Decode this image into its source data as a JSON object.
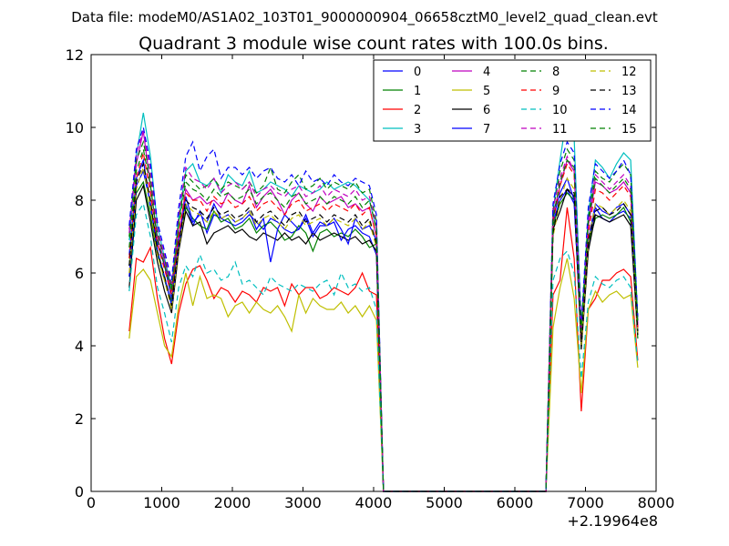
{
  "chart_data": {
    "type": "line",
    "suptitle": "Data file: modeM0/AS1A02_103T01_9000000904_06658cztM0_level2_quad_clean.evt",
    "title": "Quadrant 3 module wise count rates with 100.0s bins.",
    "xlabel": "",
    "ylabel": "",
    "x_offset_label": "+2.19964e8",
    "xlim": [
      0,
      8000
    ],
    "ylim": [
      0,
      12
    ],
    "xticks": [
      0,
      1000,
      2000,
      3000,
      4000,
      5000,
      6000,
      7000,
      8000
    ],
    "yticks": [
      0,
      2,
      4,
      6,
      8,
      10,
      12
    ],
    "grid": false,
    "legend_position": "top-right",
    "legend_columns": 4,
    "x": [
      540,
      640,
      740,
      840,
      940,
      1040,
      1140,
      1240,
      1340,
      1440,
      1540,
      1640,
      1740,
      1840,
      1940,
      2040,
      2140,
      2240,
      2340,
      2440,
      2540,
      2640,
      2740,
      2840,
      2940,
      3040,
      3140,
      3240,
      3340,
      3440,
      3540,
      3640,
      3740,
      3840,
      3940,
      4040,
      4140,
      4240,
      6340,
      6440,
      6540,
      6640,
      6740,
      6840,
      6940,
      7040,
      7140,
      7240,
      7340,
      7440,
      7540,
      7640,
      7740
    ],
    "series": [
      {
        "name": "0",
        "color": "#0000ff",
        "dash": "solid",
        "values": [
          6.5,
          8.6,
          9.1,
          7.8,
          6.8,
          6.2,
          5.3,
          6.8,
          7.9,
          7.3,
          7.7,
          7.1,
          7.6,
          7.5,
          7.4,
          7.3,
          7.4,
          7.6,
          7.4,
          7.2,
          7.5,
          7.4,
          7.2,
          7.1,
          7.2,
          7.5,
          7.0,
          7.3,
          7.3,
          7.4,
          6.9,
          7.2,
          7.3,
          7.1,
          7.0,
          6.5,
          0.0,
          0.0,
          0.0,
          0.0,
          7.4,
          8.0,
          8.3,
          7.9,
          4.3,
          6.7,
          7.8,
          7.5,
          7.4,
          7.6,
          7.7,
          7.5,
          4.4
        ]
      },
      {
        "name": "1",
        "color": "#008000",
        "dash": "solid",
        "values": [
          6.2,
          8.2,
          8.5,
          7.6,
          6.5,
          5.8,
          5.2,
          6.9,
          7.8,
          7.5,
          7.3,
          7.2,
          7.7,
          7.4,
          7.5,
          7.2,
          7.3,
          7.5,
          7.1,
          7.3,
          7.4,
          7.2,
          6.9,
          7.0,
          7.3,
          7.1,
          6.6,
          7.1,
          7.2,
          7.0,
          7.1,
          7.0,
          7.2,
          7.0,
          6.7,
          6.8,
          0.0,
          0.0,
          0.0,
          0.0,
          7.3,
          7.9,
          8.2,
          8.0,
          4.0,
          6.8,
          7.5,
          7.6,
          7.5,
          7.6,
          7.8,
          7.4,
          4.2
        ]
      },
      {
        "name": "2",
        "color": "#ff0000",
        "dash": "solid",
        "values": [
          4.4,
          6.4,
          6.3,
          6.7,
          5.3,
          4.2,
          3.5,
          4.9,
          5.7,
          6.1,
          6.2,
          5.8,
          5.3,
          5.6,
          5.5,
          5.2,
          5.5,
          5.4,
          5.2,
          5.6,
          5.5,
          5.6,
          5.1,
          5.7,
          5.4,
          5.6,
          5.6,
          5.3,
          5.4,
          5.6,
          5.5,
          5.4,
          5.6,
          6.0,
          5.5,
          5.4,
          0.0,
          0.0,
          0.0,
          0.0,
          5.4,
          5.8,
          7.8,
          6.4,
          2.2,
          5.0,
          5.3,
          5.8,
          5.8,
          6.0,
          6.1,
          5.9,
          3.6
        ]
      },
      {
        "name": "3",
        "color": "#00bfbf",
        "dash": "solid",
        "values": [
          6.9,
          9.2,
          10.4,
          9.2,
          7.3,
          6.4,
          5.6,
          7.5,
          8.8,
          9.0,
          8.5,
          8.4,
          8.6,
          8.2,
          8.7,
          8.5,
          8.4,
          8.8,
          8.2,
          8.3,
          8.5,
          8.4,
          8.3,
          8.1,
          8.4,
          8.3,
          8.2,
          8.3,
          8.5,
          8.3,
          8.4,
          8.5,
          8.4,
          8.2,
          8.0,
          7.2,
          0.0,
          0.0,
          0.0,
          0.0,
          7.7,
          9.1,
          10.4,
          9.7,
          4.5,
          7.6,
          9.1,
          8.9,
          8.6,
          9.0,
          9.3,
          9.1,
          4.7
        ]
      },
      {
        "name": "4",
        "color": "#bf00bf",
        "dash": "solid",
        "values": [
          7.2,
          9.0,
          9.9,
          8.4,
          7.0,
          6.3,
          5.5,
          7.0,
          8.3,
          8.0,
          8.1,
          7.9,
          8.0,
          7.8,
          8.2,
          8.0,
          7.9,
          8.4,
          7.8,
          8.1,
          8.3,
          8.0,
          7.6,
          8.0,
          8.2,
          7.9,
          7.7,
          8.1,
          7.9,
          8.0,
          8.1,
          7.8,
          7.9,
          7.7,
          7.8,
          7.0,
          0.0,
          0.0,
          0.0,
          0.0,
          7.6,
          8.4,
          9.1,
          8.8,
          4.3,
          7.3,
          8.5,
          8.4,
          8.2,
          8.3,
          8.5,
          8.2,
          4.6
        ]
      },
      {
        "name": "5",
        "color": "#bfbf00",
        "dash": "solid",
        "values": [
          4.2,
          5.9,
          6.1,
          5.8,
          4.9,
          4.0,
          3.7,
          5.1,
          6.0,
          5.1,
          5.9,
          5.3,
          5.4,
          5.3,
          4.8,
          5.1,
          5.2,
          4.9,
          5.2,
          5.0,
          4.9,
          5.1,
          4.8,
          4.4,
          5.4,
          4.9,
          5.3,
          5.1,
          5.0,
          5.0,
          5.2,
          4.9,
          5.1,
          4.8,
          5.1,
          4.7,
          0.0,
          0.0,
          0.0,
          0.0,
          4.5,
          5.6,
          6.4,
          5.3,
          2.7,
          5.0,
          5.5,
          5.2,
          5.4,
          5.5,
          5.3,
          5.4,
          3.4
        ]
      },
      {
        "name": "6",
        "color": "#000000",
        "dash": "solid",
        "values": [
          5.6,
          8.0,
          8.4,
          7.4,
          6.3,
          5.5,
          4.9,
          6.6,
          7.7,
          7.3,
          7.4,
          6.8,
          7.1,
          7.2,
          7.3,
          7.1,
          7.2,
          7.0,
          6.9,
          7.1,
          7.0,
          6.9,
          7.1,
          6.9,
          7.0,
          6.8,
          7.1,
          6.9,
          7.0,
          7.1,
          7.0,
          6.9,
          7.0,
          6.8,
          6.9,
          6.6,
          0.0,
          0.0,
          0.0,
          0.0,
          7.2,
          7.7,
          8.3,
          8.1,
          3.9,
          6.6,
          7.6,
          7.5,
          7.4,
          7.5,
          7.6,
          7.3,
          4.3
        ]
      },
      {
        "name": "7",
        "color": "#0000ff",
        "dash": "solid",
        "values": [
          5.9,
          8.4,
          8.8,
          7.9,
          6.6,
          5.9,
          5.1,
          6.8,
          8.1,
          7.4,
          7.6,
          7.4,
          7.9,
          7.5,
          7.6,
          7.4,
          7.5,
          7.7,
          7.2,
          7.5,
          6.3,
          7.2,
          7.6,
          7.4,
          7.2,
          7.6,
          7.1,
          7.4,
          7.3,
          7.5,
          7.2,
          6.8,
          7.5,
          7.2,
          7.3,
          6.9,
          0.0,
          0.0,
          0.0,
          0.0,
          7.5,
          8.2,
          8.6,
          8.0,
          4.2,
          6.9,
          7.9,
          7.7,
          7.6,
          7.8,
          7.9,
          7.6,
          4.5
        ]
      },
      {
        "name": "8",
        "color": "#008000",
        "dash": "dashed",
        "values": [
          7.0,
          9.1,
          9.6,
          8.6,
          7.1,
          6.4,
          5.6,
          7.4,
          8.7,
          8.5,
          8.3,
          8.4,
          8.6,
          8.3,
          8.5,
          8.4,
          8.3,
          8.5,
          8.2,
          8.4,
          8.9,
          8.3,
          8.2,
          8.5,
          8.7,
          8.3,
          8.4,
          8.6,
          8.3,
          8.5,
          8.4,
          8.3,
          8.5,
          8.2,
          8.3,
          7.4,
          0.0,
          0.0,
          0.0,
          0.0,
          7.7,
          8.8,
          9.4,
          9.1,
          4.5,
          7.5,
          8.8,
          8.6,
          8.5,
          8.8,
          9.0,
          8.7,
          4.7
        ]
      },
      {
        "name": "9",
        "color": "#ff0000",
        "dash": "dashed",
        "values": [
          6.4,
          8.6,
          9.3,
          8.2,
          6.8,
          6.1,
          5.4,
          7.1,
          8.2,
          8.0,
          8.0,
          7.7,
          8.1,
          7.9,
          8.0,
          7.8,
          7.9,
          8.1,
          7.7,
          7.9,
          8.0,
          7.8,
          7.6,
          7.9,
          8.0,
          7.7,
          7.8,
          7.9,
          7.7,
          7.9,
          7.8,
          7.7,
          7.9,
          7.6,
          7.8,
          7.0,
          0.0,
          0.0,
          0.0,
          0.0,
          7.4,
          8.4,
          9.0,
          8.7,
          4.2,
          7.1,
          8.3,
          8.2,
          8.0,
          8.2,
          8.4,
          8.1,
          4.5
        ]
      },
      {
        "name": "10",
        "color": "#00bfbf",
        "dash": "dashed",
        "values": [
          5.5,
          7.6,
          7.9,
          7.0,
          5.6,
          4.9,
          4.1,
          5.6,
          6.2,
          5.9,
          6.5,
          6.0,
          6.1,
          5.8,
          5.9,
          6.3,
          5.7,
          5.8,
          5.6,
          5.4,
          5.9,
          5.7,
          5.6,
          5.5,
          5.7,
          5.6,
          5.5,
          5.7,
          5.8,
          5.4,
          6.0,
          5.6,
          5.7,
          5.5,
          5.6,
          5.0,
          0.0,
          0.0,
          0.0,
          0.0,
          5.8,
          6.4,
          6.6,
          6.0,
          3.1,
          5.2,
          5.9,
          5.7,
          5.6,
          5.8,
          5.9,
          5.6,
          3.5
        ]
      },
      {
        "name": "11",
        "color": "#bf00bf",
        "dash": "dashed",
        "values": [
          7.1,
          9.3,
          9.9,
          8.8,
          7.2,
          6.5,
          5.7,
          7.6,
          8.9,
          8.6,
          8.5,
          8.3,
          8.6,
          8.2,
          8.4,
          8.5,
          8.3,
          8.5,
          8.1,
          8.3,
          8.4,
          8.2,
          8.1,
          8.3,
          8.4,
          8.1,
          8.2,
          8.4,
          8.1,
          8.3,
          8.2,
          8.1,
          8.3,
          8.0,
          8.1,
          7.3,
          0.0,
          0.0,
          0.0,
          0.0,
          7.8,
          8.6,
          9.2,
          8.8,
          4.4,
          7.5,
          8.7,
          8.5,
          8.3,
          8.5,
          8.7,
          8.4,
          4.6
        ]
      },
      {
        "name": "12",
        "color": "#bfbf00",
        "dash": "dashed",
        "values": [
          6.0,
          8.3,
          8.9,
          7.8,
          6.5,
          5.8,
          5.0,
          6.7,
          7.9,
          7.7,
          7.6,
          7.4,
          7.7,
          7.5,
          7.6,
          7.4,
          7.5,
          7.7,
          7.3,
          7.5,
          7.6,
          7.4,
          7.2,
          7.5,
          7.6,
          7.3,
          7.4,
          7.5,
          7.3,
          7.5,
          7.4,
          7.3,
          7.5,
          7.2,
          7.4,
          6.7,
          0.0,
          0.0,
          0.0,
          0.0,
          7.0,
          8.0,
          8.6,
          8.3,
          4.0,
          6.8,
          7.9,
          7.8,
          7.6,
          7.8,
          8.0,
          7.7,
          4.3
        ]
      },
      {
        "name": "13",
        "color": "#000000",
        "dash": "dashed",
        "values": [
          6.2,
          8.5,
          9.0,
          8.0,
          6.6,
          5.9,
          5.1,
          6.8,
          8.0,
          7.8,
          7.7,
          7.5,
          7.8,
          7.6,
          7.7,
          7.5,
          7.6,
          7.8,
          7.4,
          7.6,
          7.7,
          7.5,
          7.3,
          7.6,
          7.7,
          7.4,
          7.5,
          7.6,
          7.4,
          7.6,
          7.5,
          7.4,
          7.6,
          7.3,
          7.5,
          6.8,
          0.0,
          0.0,
          0.0,
          0.0,
          7.1,
          8.1,
          8.3,
          8.2,
          4.1,
          6.9,
          7.7,
          7.8,
          7.6,
          7.7,
          7.9,
          7.6,
          4.4
        ]
      },
      {
        "name": "14",
        "color": "#0000ff",
        "dash": "dashed",
        "values": [
          7.3,
          9.4,
          10.0,
          9.0,
          7.4,
          6.6,
          5.8,
          7.8,
          9.2,
          9.6,
          8.8,
          9.2,
          9.4,
          8.6,
          8.9,
          8.9,
          8.7,
          8.9,
          8.6,
          8.8,
          8.9,
          8.6,
          8.5,
          8.7,
          8.4,
          8.8,
          8.5,
          8.6,
          8.4,
          8.7,
          8.5,
          8.4,
          8.6,
          8.5,
          8.4,
          7.6,
          0.0,
          0.0,
          0.0,
          0.0,
          7.9,
          9.0,
          9.6,
          9.3,
          4.6,
          7.8,
          9.0,
          8.8,
          8.6,
          8.8,
          9.1,
          8.7,
          4.8
        ]
      },
      {
        "name": "15",
        "color": "#008000",
        "dash": "dashed",
        "values": [
          6.7,
          8.8,
          9.4,
          8.4,
          6.9,
          6.2,
          5.5,
          7.3,
          8.5,
          8.3,
          8.2,
          8.0,
          8.3,
          8.1,
          8.2,
          8.0,
          8.1,
          8.3,
          7.9,
          8.1,
          8.2,
          8.0,
          7.8,
          8.1,
          8.2,
          7.9,
          8.0,
          8.1,
          7.9,
          8.1,
          8.0,
          7.9,
          8.1,
          7.8,
          8.0,
          7.2,
          0.0,
          0.0,
          0.0,
          0.0,
          7.5,
          8.5,
          9.1,
          8.9,
          4.4,
          7.4,
          8.6,
          8.4,
          8.2,
          8.4,
          8.6,
          8.3,
          4.6
        ]
      }
    ]
  }
}
